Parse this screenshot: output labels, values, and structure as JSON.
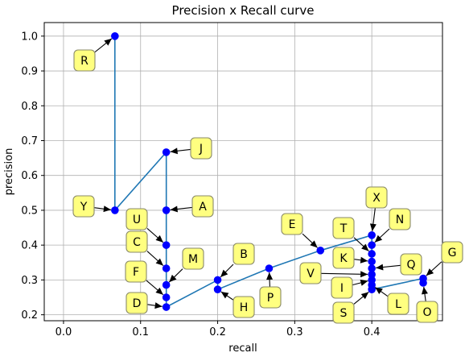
{
  "chart_data": {
    "type": "line",
    "title": "Precision x Recall curve",
    "xlabel": "recall",
    "ylabel": "precision",
    "xlim": [
      -0.025,
      0.4917
    ],
    "ylim": [
      0.1829,
      1.0389
    ],
    "xticks": [
      "0.0",
      "0.1",
      "0.2",
      "0.3",
      "0.4"
    ],
    "yticks": [
      "0.2",
      "0.3",
      "0.4",
      "0.5",
      "0.6",
      "0.7",
      "0.8",
      "0.9",
      "1.0"
    ],
    "xtick_values": [
      0.0,
      0.1,
      0.2,
      0.3,
      0.4
    ],
    "ytick_values": [
      0.2,
      0.3,
      0.4,
      0.5,
      0.6,
      0.7,
      0.8,
      0.9,
      1.0
    ],
    "grid": true,
    "curve": [
      [
        0.0667,
        1.0
      ],
      [
        0.0667,
        0.5
      ],
      [
        0.1333,
        0.6667
      ],
      [
        0.1333,
        0.5
      ],
      [
        0.1333,
        0.4
      ],
      [
        0.1333,
        0.3333
      ],
      [
        0.1333,
        0.2857
      ],
      [
        0.1333,
        0.25
      ],
      [
        0.1333,
        0.2222
      ],
      [
        0.2,
        0.3
      ],
      [
        0.2,
        0.2727
      ],
      [
        0.2667,
        0.3333
      ],
      [
        0.3333,
        0.3846
      ],
      [
        0.4,
        0.4286
      ],
      [
        0.4,
        0.4
      ],
      [
        0.4,
        0.375
      ],
      [
        0.4,
        0.3529
      ],
      [
        0.4,
        0.3333
      ],
      [
        0.4,
        0.3158
      ],
      [
        0.4,
        0.3
      ],
      [
        0.4,
        0.2857
      ],
      [
        0.4,
        0.2727
      ],
      [
        0.4667,
        0.3043
      ],
      [
        0.4667,
        0.2917
      ]
    ],
    "annotations": [
      {
        "label": "R",
        "point": [
          0.0667,
          1.0
        ]
      },
      {
        "label": "Y",
        "point": [
          0.0667,
          0.5
        ]
      },
      {
        "label": "J",
        "point": [
          0.1333,
          0.6667
        ]
      },
      {
        "label": "A",
        "point": [
          0.1333,
          0.5
        ]
      },
      {
        "label": "U",
        "point": [
          0.1333,
          0.4
        ]
      },
      {
        "label": "C",
        "point": [
          0.1333,
          0.3333
        ]
      },
      {
        "label": "M",
        "point": [
          0.1333,
          0.2857
        ]
      },
      {
        "label": "F",
        "point": [
          0.1333,
          0.25
        ]
      },
      {
        "label": "D",
        "point": [
          0.1333,
          0.2222
        ]
      },
      {
        "label": "B",
        "point": [
          0.2,
          0.3
        ]
      },
      {
        "label": "H",
        "point": [
          0.2,
          0.2727
        ]
      },
      {
        "label": "P",
        "point": [
          0.2667,
          0.3333
        ]
      },
      {
        "label": "E",
        "point": [
          0.3333,
          0.3846
        ]
      },
      {
        "label": "X",
        "point": [
          0.4,
          0.4286
        ]
      },
      {
        "label": "N",
        "point": [
          0.4,
          0.4
        ]
      },
      {
        "label": "T",
        "point": [
          0.4,
          0.375
        ]
      },
      {
        "label": "K",
        "point": [
          0.4,
          0.3529
        ]
      },
      {
        "label": "Q",
        "point": [
          0.4,
          0.3333
        ]
      },
      {
        "label": "V",
        "point": [
          0.4,
          0.3158
        ]
      },
      {
        "label": "I",
        "point": [
          0.4,
          0.3
        ]
      },
      {
        "label": "L",
        "point": [
          0.4,
          0.2857
        ]
      },
      {
        "label": "S",
        "point": [
          0.4,
          0.2727
        ]
      },
      {
        "label": "G",
        "point": [
          0.4667,
          0.3043
        ]
      },
      {
        "label": "O",
        "point": [
          0.4667,
          0.2917
        ]
      }
    ]
  }
}
